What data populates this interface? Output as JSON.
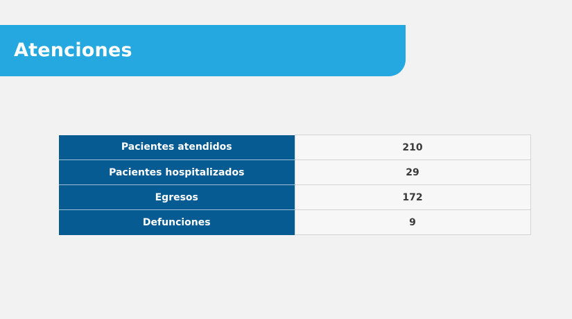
{
  "header": {
    "title": "Atenciones"
  },
  "table": {
    "rows": [
      {
        "label": "Pacientes atendidos",
        "value": "210"
      },
      {
        "label": "Pacientes hospitalizados",
        "value": "29"
      },
      {
        "label": "Egresos",
        "value": "172"
      },
      {
        "label": "Defunciones",
        "value": "9"
      }
    ]
  },
  "colors": {
    "banner": "#25a7e0",
    "label_cell": "#075b93",
    "background": "#f2f2f2"
  }
}
